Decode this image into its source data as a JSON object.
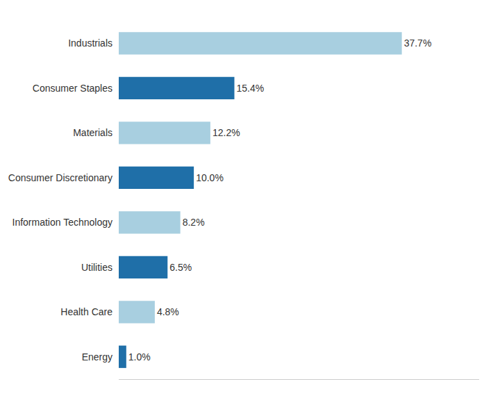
{
  "chart_data": {
    "type": "bar",
    "orientation": "horizontal",
    "categories": [
      "Industrials",
      "Consumer Staples",
      "Materials",
      "Consumer Discretionary",
      "Information Technology",
      "Utilities",
      "Health Care",
      "Energy"
    ],
    "values": [
      37.7,
      15.4,
      12.2,
      10.0,
      8.2,
      6.5,
      4.8,
      1.0
    ],
    "value_labels": [
      "37.7%",
      "15.4%",
      "12.2%",
      "10.0%",
      "8.2%",
      "6.5%",
      "4.8%",
      "1.0%"
    ],
    "colors": [
      "#a8cfe0",
      "#1f6fa8",
      "#a8cfe0",
      "#1f6fa8",
      "#a8cfe0",
      "#1f6fa8",
      "#a8cfe0",
      "#1f6fa8"
    ],
    "xlim": [
      0,
      48
    ],
    "data_labels": true,
    "tick_labels": "y",
    "grid": false
  }
}
